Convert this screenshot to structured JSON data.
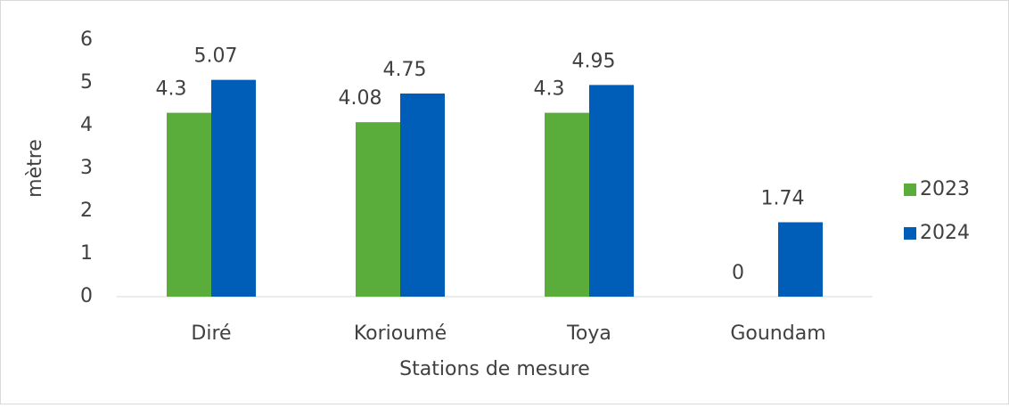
{
  "chart_data": {
    "type": "bar",
    "xlabel": "Stations de mesure",
    "ylabel": "mètre",
    "categories": [
      "Diré",
      "Korioumé",
      "Toya",
      "Goundam"
    ],
    "series": [
      {
        "name": "2023",
        "color": "#5aad3a",
        "values": [
          4.3,
          4.08,
          4.3,
          0
        ]
      },
      {
        "name": "2024",
        "color": "#005eb8",
        "values": [
          5.07,
          4.75,
          4.95,
          1.74
        ]
      }
    ],
    "ylim": [
      0,
      6
    ],
    "yticks": [
      0,
      1,
      2,
      3,
      4,
      5,
      6
    ],
    "grid": false,
    "legend": "right"
  }
}
